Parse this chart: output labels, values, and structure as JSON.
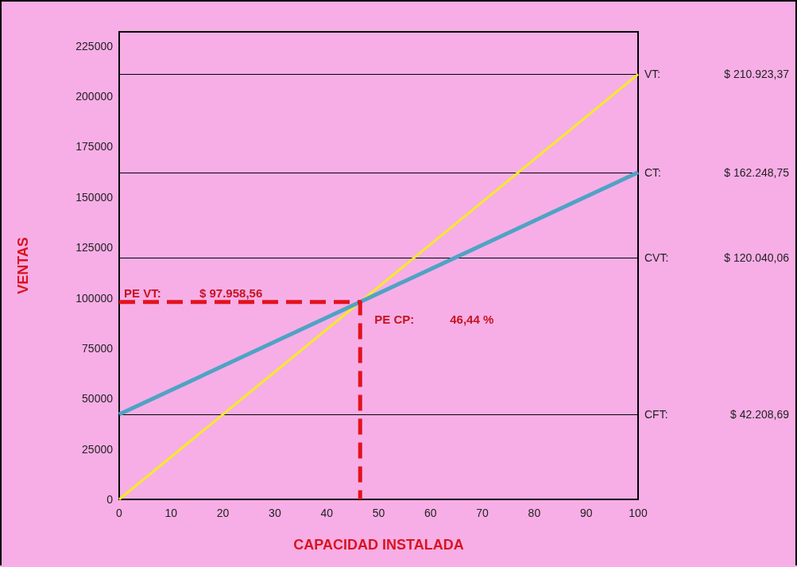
{
  "chart_data": {
    "type": "line",
    "xlabel": "CAPACIDAD INSTALADA",
    "ylabel": "VENTAS",
    "xlim": [
      0,
      100
    ],
    "xticks": [
      0,
      10,
      20,
      30,
      40,
      50,
      60,
      70,
      80,
      90,
      100
    ],
    "ylim": [
      0,
      232000
    ],
    "yticks": [
      0,
      25000,
      50000,
      75000,
      100000,
      125000,
      150000,
      175000,
      200000,
      225000
    ],
    "grid": false,
    "marker": "none",
    "series": [
      {
        "color": "#f4ea2a",
        "x": [
          0,
          100
        ],
        "values": [
          0,
          210923.37
        ]
      },
      {
        "color": "#4fa3c4",
        "x": [
          0,
          100
        ],
        "values": [
          42208.69,
          162248.75
        ]
      },
      {
        "color": "#e3121c",
        "line_style": "dashed",
        "x": [
          0,
          46.44,
          46.44
        ],
        "values": [
          97958.56,
          97958.56,
          0
        ]
      }
    ],
    "ref_lines": [
      {
        "axis": "y",
        "value": 210923.37,
        "label": "VT:",
        "color": "#000000"
      },
      {
        "axis": "y",
        "value": 162248.75,
        "label": "CT:",
        "color": "#000000"
      },
      {
        "axis": "y",
        "value": 120040.06,
        "label": "CVT:",
        "color": "#000000"
      },
      {
        "axis": "y",
        "value": 42208.69,
        "label": "CFT:",
        "color": "#000000"
      }
    ],
    "annotations": [
      "$ 210.923,37",
      "$ 162.248,75",
      "$ 120.040,06",
      "$ 42.208,69",
      {
        "text": "PE VT:",
        "x": 0,
        "y": 97958.56
      },
      "$ 97.958,56",
      {
        "text": "PE CP:",
        "x": 46.44,
        "y": 97958.56
      },
      "46,44 %"
    ]
  }
}
